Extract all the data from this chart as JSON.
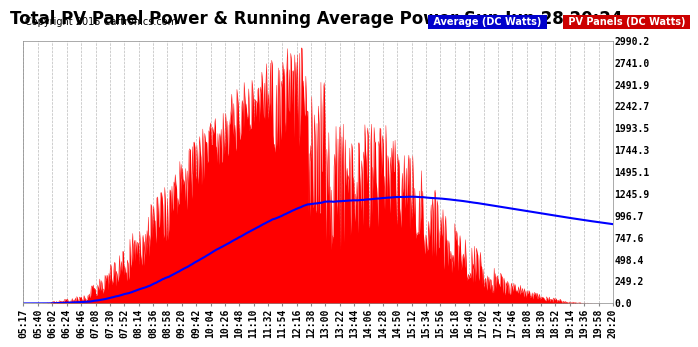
{
  "title": "Total PV Panel Power & Running Average Power Sun Jun 28 20:24",
  "copyright": "Copyright 2015 Cartronics.com",
  "legend_avg": "Average (DC Watts)",
  "legend_pv": "PV Panels (DC Watts)",
  "legend_avg_bg": "#0000cc",
  "legend_pv_bg": "#cc0000",
  "legend_avg_fg": "#ffffff",
  "legend_pv_fg": "#ffffff",
  "y_ticks": [
    0.0,
    249.2,
    498.4,
    747.6,
    996.7,
    1245.9,
    1495.1,
    1744.3,
    1993.5,
    2242.7,
    2491.9,
    2741.0,
    2990.2
  ],
  "ymax": 2990.2,
  "ymin": 0.0,
  "bg_color": "#ffffff",
  "plot_bg": "#ffffff",
  "grid_color": "#aaaaaa",
  "pv_fill_color": "#ff0000",
  "avg_line_color": "#0000ff",
  "title_fontsize": 12,
  "axis_fontsize": 7,
  "copyright_fontsize": 7,
  "x_tick_labels": [
    "05:17",
    "05:40",
    "06:02",
    "06:24",
    "06:46",
    "07:08",
    "07:30",
    "07:52",
    "08:14",
    "08:36",
    "08:58",
    "09:20",
    "09:42",
    "10:04",
    "10:26",
    "10:48",
    "11:10",
    "11:32",
    "11:54",
    "12:16",
    "12:38",
    "13:00",
    "13:22",
    "13:44",
    "14:06",
    "14:28",
    "14:50",
    "15:12",
    "15:34",
    "15:56",
    "16:18",
    "16:40",
    "17:02",
    "17:24",
    "17:46",
    "18:08",
    "18:30",
    "18:52",
    "19:14",
    "19:36",
    "19:58",
    "20:20"
  ]
}
